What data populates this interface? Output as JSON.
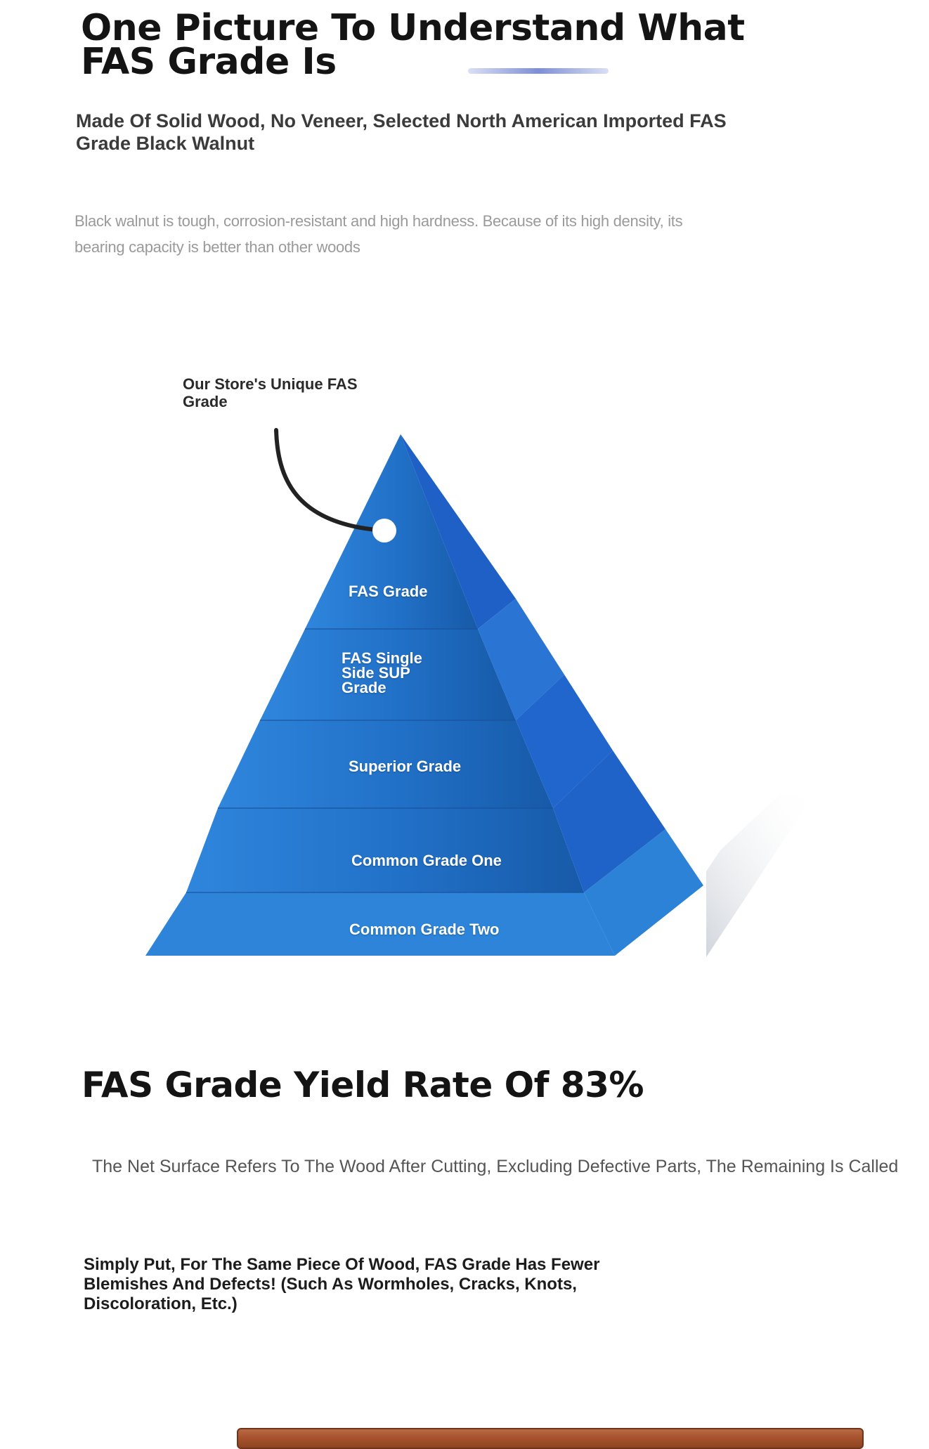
{
  "header": {
    "title": "One Picture To Understand What FAS Grade Is",
    "subtitle": "Made Of Solid Wood, No Veneer, Selected North American Imported FAS Grade Black Walnut",
    "description": "Black walnut is tough, corrosion-resistant and high hardness. Because of its high density, its bearing capacity is better than other woods"
  },
  "pyramid": {
    "callout": "Our Store's Unique FAS Grade",
    "tiers": [
      "FAS Grade",
      "FAS Single Side SUP Grade",
      "Superior Grade",
      "Common Grade One",
      "Common Grade Two"
    ],
    "colors": {
      "front_dark": "#1b5fb0",
      "front_light": "#2f86dc",
      "side_dark": "#1f63c4",
      "side_light": "#2d84d8"
    }
  },
  "yield": {
    "heading": "FAS Grade Yield Rate Of 83%",
    "net_surface_text": "The Net Surface Refers To The Wood After Cutting, Excluding Defective Parts, The Remaining Is Called",
    "simply_put": "Simply Put, For The Same Piece Of Wood, FAS Grade Has Fewer Blemishes And Defects! (Such As Wormholes, Cracks, Knots, Discoloration, Etc.)"
  }
}
